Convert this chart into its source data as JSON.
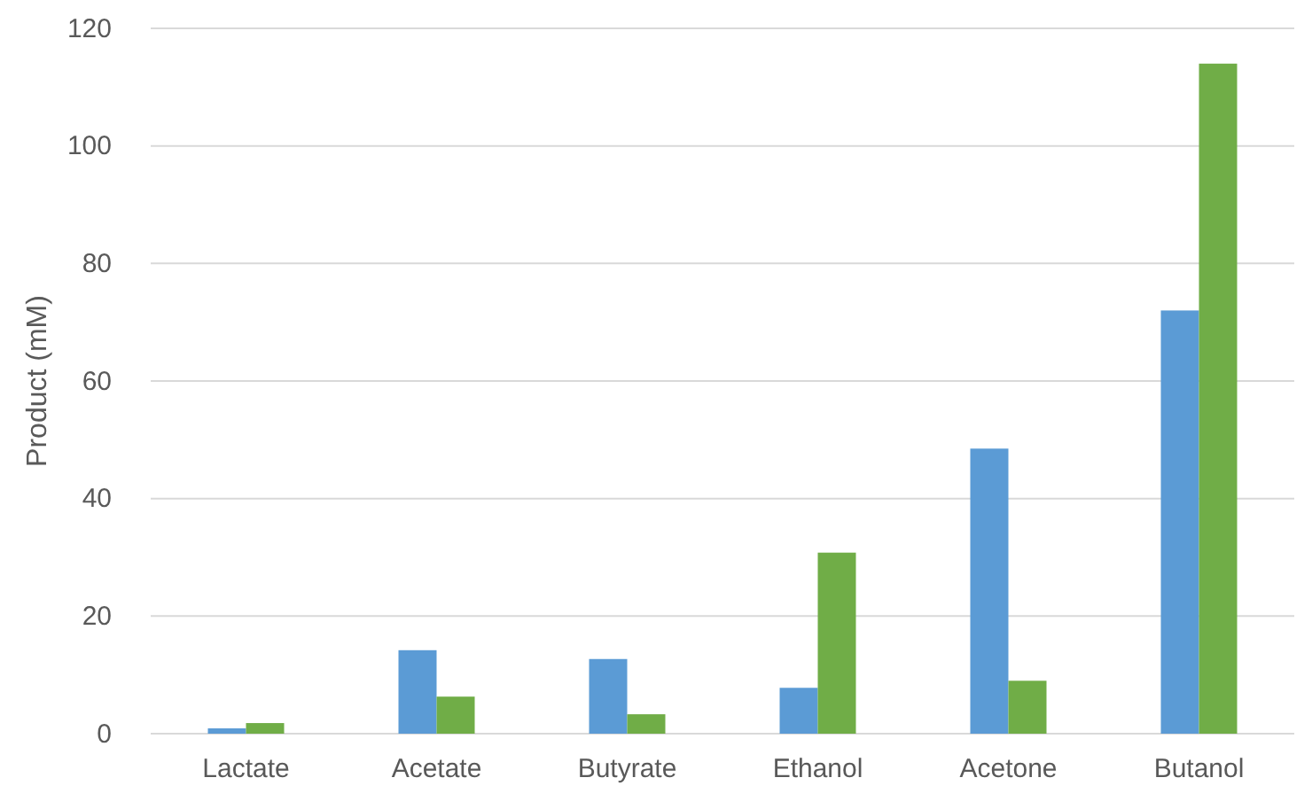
{
  "chart_data": {
    "type": "bar",
    "ylabel": "Product (mM)",
    "categories": [
      "Lactate",
      "Acetate",
      "Butyrate",
      "Ethanol",
      "Acetone",
      "Butanol"
    ],
    "series": [
      {
        "color": "#5b9bd5",
        "values": [
          0.9,
          14.2,
          12.7,
          7.8,
          48.5,
          72
        ]
      },
      {
        "color": "#70ad47",
        "values": [
          1.8,
          6.3,
          3.3,
          30.8,
          9,
          114
        ]
      }
    ],
    "ylim": [
      0,
      120
    ],
    "yticks": [
      0,
      20,
      40,
      60,
      80,
      100,
      120
    ],
    "grid": "y"
  }
}
